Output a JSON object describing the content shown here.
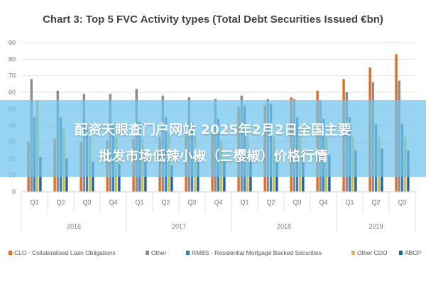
{
  "chart_data": {
    "type": "bar",
    "title": "Chart 3: Top 5 FVC Activity types (Total Debt Securities Issued €bn)",
    "xlabel": "",
    "ylabel": "",
    "ylim": [
      0,
      90
    ],
    "yticks": [
      0,
      10,
      20,
      30,
      40,
      50,
      60,
      70,
      80,
      90
    ],
    "grid": true,
    "legend_position": "bottom",
    "categories": [
      "Q1",
      "Q2",
      "Q3",
      "Q4",
      "Q1",
      "Q2",
      "Q3",
      "Q4",
      "Q1",
      "Q2",
      "Q3",
      "Q4",
      "Q1",
      "Q2",
      "Q3"
    ],
    "year_groups": [
      {
        "label": "2016",
        "count": 4
      },
      {
        "label": "2017",
        "count": 4
      },
      {
        "label": "2018",
        "count": 4
      },
      {
        "label": "2019",
        "count": 3
      }
    ],
    "series": [
      {
        "name": "CLO - Collateralised Loan Obligations",
        "color": "#e46c1f",
        "values": [
          30,
          32,
          30,
          31,
          32,
          33,
          34,
          36,
          51,
          52,
          57,
          61,
          68,
          75,
          83
        ]
      },
      {
        "name": "Other",
        "color": "#8c8c8c",
        "values": [
          68,
          61,
          59,
          59,
          62,
          58,
          57,
          56,
          58,
          56,
          56,
          55,
          60,
          66,
          67
        ]
      },
      {
        "name": "RMBS - Residential Mortgage Backed Securities",
        "color": "#2f7fc1",
        "values": [
          45,
          45,
          40,
          41,
          42,
          45,
          42,
          44,
          52,
          53,
          45,
          44,
          45,
          41,
          41
        ]
      },
      {
        "name": "Other CDO",
        "color": "#d6c23a",
        "values": [
          55,
          38,
          33,
          33,
          32,
          35,
          34,
          31,
          33,
          33,
          33,
          33,
          33,
          33,
          33
        ]
      },
      {
        "name": "ABCP",
        "color": "#1f5fb0",
        "values": [
          21,
          20,
          18,
          17,
          19,
          16,
          20,
          18,
          23,
          23,
          22,
          22,
          25,
          26,
          25
        ]
      }
    ]
  },
  "overlay": {
    "line1": "配资天眼查门户网站 2025年2月2日全国主要",
    "line2": "批发市场低辣小椒（三樱椒）价格行情"
  }
}
